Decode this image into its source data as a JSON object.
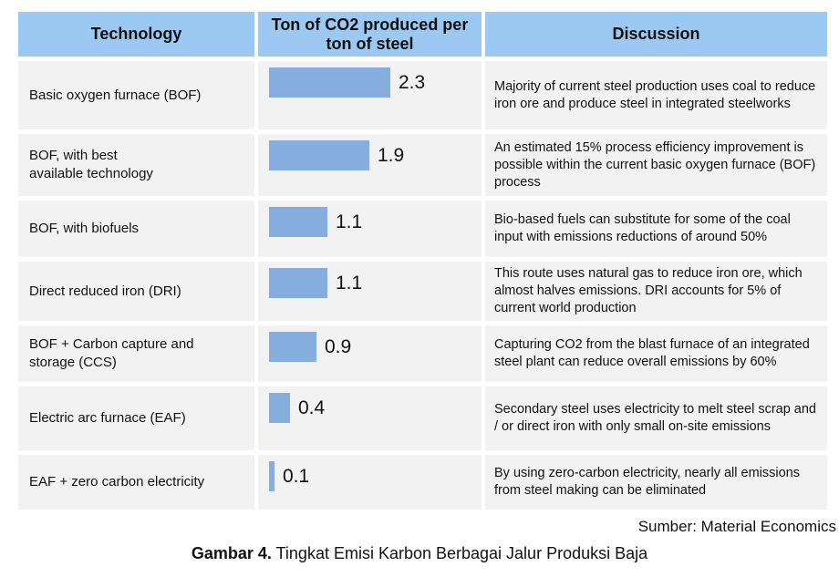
{
  "colors": {
    "background": "#FFFFFF",
    "header_bg": "#9CC9F2",
    "row_bg": "#F2F2F2",
    "bar": "#85AEDE",
    "text": "#111111"
  },
  "header": {
    "technology": "Technology",
    "emissions": "Ton of CO2 produced per ton of steel",
    "discussion": "Discussion"
  },
  "rows": [
    {
      "technology": "Basic oxygen furnace (BOF)",
      "value_label": "2.3",
      "discussion": "Majority of current steel production uses coal to reduce iron ore and produce steel in integrated steelworks"
    },
    {
      "technology": "BOF, with best\navailable technology",
      "value_label": "1.9",
      "discussion": "An estimated 15% process efficiency improvement is possible within the current basic oxygen furnace (BOF) process"
    },
    {
      "technology": "BOF, with biofuels",
      "value_label": "1.1",
      "discussion": "Bio-based fuels can substitute for some of the coal input with emissions reductions of around 50%"
    },
    {
      "technology": "Direct reduced iron (DRI)",
      "value_label": "1.1",
      "discussion": "This route uses natural gas to reduce iron ore, which almost halves emissions. DRI accounts for 5% of current world production"
    },
    {
      "technology": "BOF + Carbon capture and\nstorage (CCS)",
      "value_label": "0.9",
      "discussion": "Capturing CO2 from the blast furnace of an integrated steel plant can reduce overall emissions by 60%"
    },
    {
      "technology": "Electric arc furnace (EAF)",
      "value_label": "0.4",
      "discussion": "Secondary steel uses electricity to melt steel scrap and / or direct iron with only small on-site emissions"
    },
    {
      "technology": "EAF + zero carbon electricity",
      "value_label": "0.1",
      "discussion": "By using zero-carbon electricity, nearly all emissions from steel making can be eliminated"
    }
  ],
  "footer": {
    "source": "Sumber: Material Economics",
    "caption_label": "Gambar 4.",
    "caption_text": "Tingkat Emisi Karbon Berbagai Jalur Produksi Baja"
  },
  "chart_data": {
    "type": "bar",
    "orientation": "horizontal",
    "title": "Ton of CO2 produced per ton of steel",
    "categories": [
      "Basic oxygen furnace (BOF)",
      "BOF, with best available technology",
      "BOF, with biofuels",
      "Direct reduced iron (DRI)",
      "BOF + Carbon capture and storage (CCS)",
      "Electric arc furnace (EAF)",
      "EAF + zero carbon electricity"
    ],
    "values": [
      2.3,
      1.9,
      1.1,
      1.1,
      0.9,
      0.4,
      0.1
    ],
    "value_labels": [
      "2.3",
      "1.9",
      "1.1",
      "1.1",
      "0.9",
      "0.4",
      "0.1"
    ],
    "xlabel": "",
    "ylabel": "",
    "xlim": [
      0,
      2.5
    ],
    "grid": false,
    "legend": false,
    "data_labels_position": "end-of-bar",
    "bar_color": "#85AEDE"
  }
}
